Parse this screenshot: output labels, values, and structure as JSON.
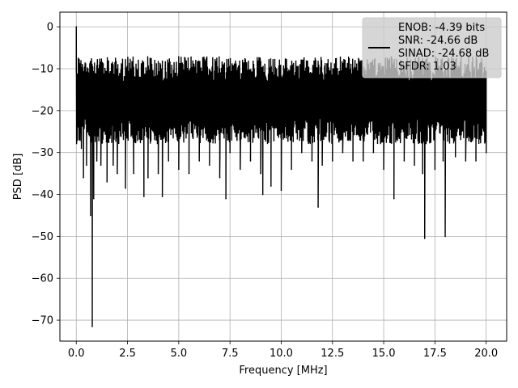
{
  "chart_data": {
    "type": "line",
    "title": "",
    "xlabel": "Frequency [MHz]",
    "ylabel": "PSD [dB]",
    "xlim": [
      -0.8,
      21.0
    ],
    "ylim": [
      -75.0,
      3.5
    ],
    "xticks": [
      0.0,
      2.5,
      5.0,
      7.5,
      10.0,
      12.5,
      15.0,
      17.5,
      20.0
    ],
    "xtick_labels": [
      "0.0",
      "2.5",
      "5.0",
      "7.5",
      "10.0",
      "12.5",
      "15.0",
      "17.5",
      "20.0"
    ],
    "yticks": [
      0,
      -10,
      -20,
      -30,
      -40,
      -50,
      -60,
      -70
    ],
    "ytick_labels": [
      "0",
      "−10",
      "−20",
      "−30",
      "−40",
      "−50",
      "−60",
      "−70"
    ],
    "grid": true,
    "legend_position": "upper right",
    "line_color": "#000000",
    "series": [
      {
        "name": "ENOB: -4.39 bits\nSNR: -24.66 dB\nSINAD: -24.68 dB\nSFDR: 1.03",
        "note_shape": "dense noise floor ~-10 to -30 dB across 0-20 MHz with sharp dips",
        "x": [
          0.0,
          0.05,
          0.1,
          0.15,
          0.2,
          0.25,
          0.3,
          0.35,
          0.4,
          0.5,
          0.6,
          0.7,
          0.78,
          0.85,
          1.0,
          1.2,
          1.5,
          1.8,
          2.0,
          2.4,
          2.8,
          3.3,
          3.5,
          4.0,
          4.2,
          4.5,
          5.0,
          5.5,
          6.0,
          6.5,
          7.0,
          7.3,
          7.5,
          8.0,
          8.5,
          9.0,
          9.1,
          9.5,
          10.0,
          10.5,
          11.0,
          11.5,
          11.8,
          12.0,
          12.5,
          13.0,
          13.5,
          14.0,
          14.5,
          15.0,
          15.5,
          16.0,
          16.5,
          16.9,
          17.0,
          17.5,
          17.9,
          18.0,
          18.5,
          19.0,
          19.5,
          20.0
        ],
        "y": [
          0.0,
          -16.0,
          -7.5,
          -22.0,
          -12.0,
          -29.0,
          -9.0,
          -36.0,
          -14.0,
          -33.0,
          -11.0,
          -45.0,
          -71.5,
          -41.0,
          -32.0,
          -33.0,
          -37.0,
          -33.0,
          -35.0,
          -38.5,
          -35.0,
          -40.5,
          -36.0,
          -35.0,
          -40.5,
          -32.0,
          -34.0,
          -35.0,
          -32.0,
          -33.0,
          -36.0,
          -41.0,
          -30.0,
          -34.0,
          -32.0,
          -35.0,
          -40.0,
          -38.0,
          -39.0,
          -34.0,
          -30.0,
          -32.0,
          -43.0,
          -33.0,
          -32.0,
          -30.0,
          -32.0,
          -32.0,
          -30.0,
          -34.0,
          -41.0,
          -32.0,
          -33.0,
          -35.0,
          -50.5,
          -34.0,
          -32.0,
          -50.0,
          -31.0,
          -32.0,
          -32.0,
          -30.0
        ]
      }
    ]
  },
  "legend": {
    "lines": [
      "ENOB: -4.39 bits",
      "SNR: -24.66 dB",
      "SINAD: -24.68 dB",
      "SFDR: 1.03"
    ],
    "background": "#cccccc"
  }
}
